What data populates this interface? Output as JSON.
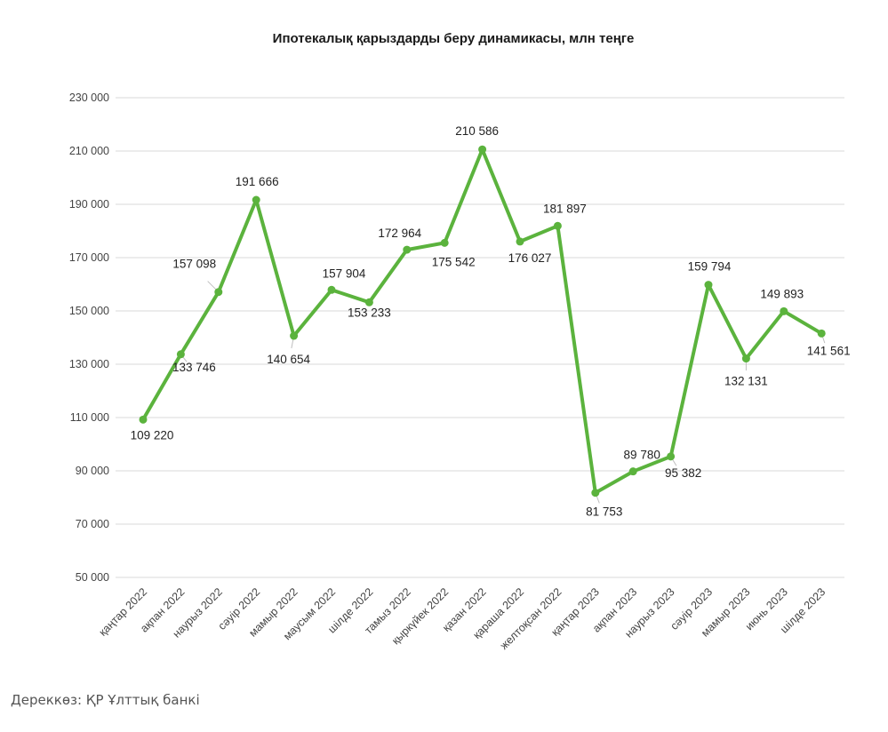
{
  "source_text": "Дереккөз: ҚР Ұлттық банкі",
  "chart_data": {
    "type": "line",
    "title": "Ипотекалық қарыздарды беру динамикасы, млн теңге",
    "xlabel": "",
    "ylabel": "",
    "ylim": [
      50000,
      230000
    ],
    "yticks": [
      50000,
      70000,
      90000,
      110000,
      130000,
      150000,
      170000,
      190000,
      210000,
      230000
    ],
    "ytick_labels": [
      "50 000",
      "70 000",
      "90 000",
      "110 000",
      "130 000",
      "150 000",
      "170 000",
      "190 000",
      "210 000",
      "230 000"
    ],
    "grid": true,
    "line_color": "#5bb33d",
    "grid_color": "#d9d9d9",
    "categories": [
      "қаңтар 2022",
      "ақпан 2022",
      "наурыз 2022",
      "сәуір 2022",
      "мамыр 2022",
      "маусым 2022",
      "шілде 2022",
      "тамыз 2022",
      "қыркүйек 2022",
      "қазан 2022",
      "қараша 2022",
      "желтоқсан 2022",
      "қаңтар 2023",
      "ақпан 2023",
      "наурыз 2023",
      "сәуір 2023",
      "мамыр 2023",
      "июнь 2023",
      "шілде 2023"
    ],
    "values": [
      109220,
      133746,
      157098,
      191666,
      140654,
      157904,
      153233,
      172964,
      175542,
      210586,
      176027,
      181897,
      81753,
      89780,
      95382,
      159794,
      132131,
      149893,
      141561
    ],
    "value_labels": [
      "109 220",
      "133 746",
      "157 098",
      "191 666",
      "140 654",
      "157 904",
      "153 233",
      "172 964",
      "175 542",
      "210 586",
      "176 027",
      "181 897",
      "81 753",
      "89 780",
      "95 382",
      "159 794",
      "132 131",
      "149 893",
      "141 561"
    ]
  }
}
